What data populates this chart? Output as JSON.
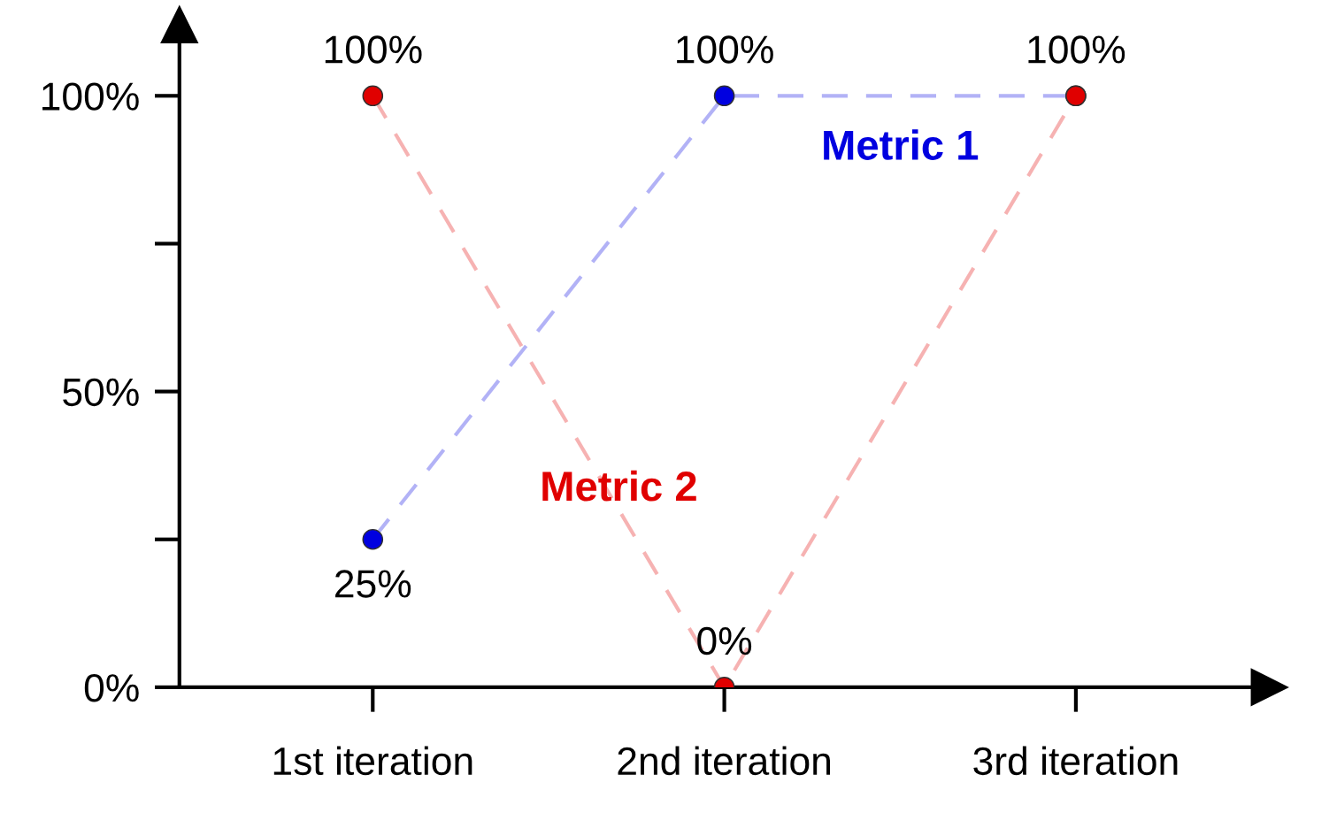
{
  "chart_data": {
    "type": "line",
    "categories": [
      "1st iteration",
      "2nd iteration",
      "3rd iteration"
    ],
    "series": [
      {
        "name": "Metric 1",
        "color": "#0000e0",
        "values": [
          25,
          100,
          100
        ],
        "value_labels": [
          "25%",
          "100%",
          "100%"
        ]
      },
      {
        "name": "Metric 2",
        "color": "#e00000",
        "values": [
          100,
          0,
          100
        ],
        "value_labels": [
          "100%",
          "0%",
          null
        ]
      }
    ],
    "ylim": [
      0,
      112
    ],
    "yticks": [
      {
        "value": 0,
        "label": "0%"
      },
      {
        "value": 25,
        "label": null
      },
      {
        "value": 50,
        "label": "50%"
      },
      {
        "value": 75,
        "label": null
      },
      {
        "value": 100,
        "label": "100%"
      }
    ],
    "marker": "circle",
    "line_style": "dashed",
    "legend": false,
    "grid": false
  }
}
